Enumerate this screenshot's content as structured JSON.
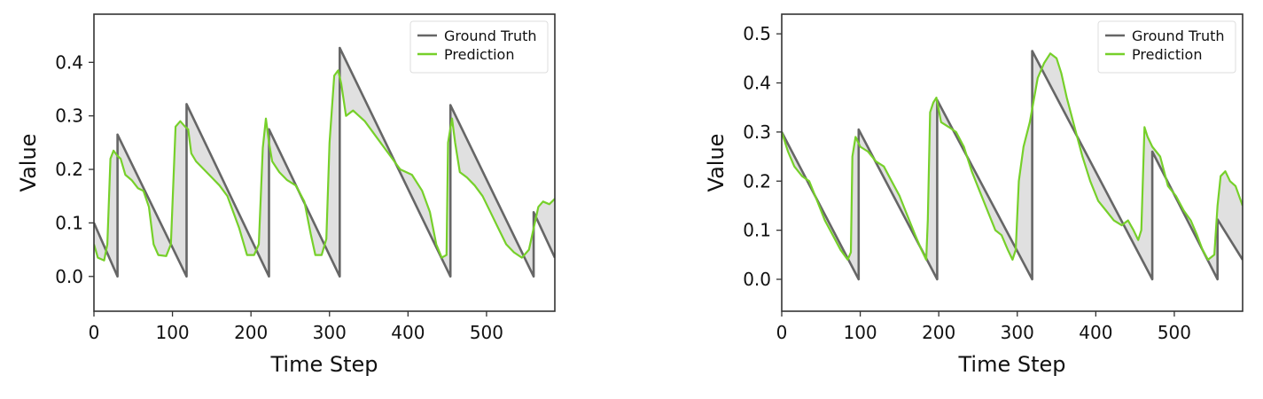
{
  "colors": {
    "ground_truth": "#666666",
    "prediction": "#76d02a",
    "fill": "#e0e0e0",
    "axes": "#333333"
  },
  "chart_data": [
    {
      "type": "line",
      "xlabel": "Time Step",
      "ylabel": "Value",
      "xlim": [
        0,
        587
      ],
      "ylim": [
        -0.065,
        0.49
      ],
      "xticks": [
        0,
        100,
        200,
        300,
        400,
        500
      ],
      "yticks": [
        0.0,
        0.1,
        0.2,
        0.3,
        0.4
      ],
      "ytick_labels": [
        "0.0",
        "0.1",
        "0.2",
        "0.3",
        "0.4"
      ],
      "grid": false,
      "legend_position": "top-right",
      "fill_between": true,
      "series": [
        {
          "name": "Ground Truth",
          "color": "#666666",
          "points": [
            [
              0,
              0.1
            ],
            [
              30,
              0.0
            ],
            [
              30,
              0.265
            ],
            [
              118,
              0.0
            ],
            [
              118,
              0.322
            ],
            [
              223,
              0.0
            ],
            [
              223,
              0.275
            ],
            [
              313,
              0.0
            ],
            [
              313,
              0.427
            ],
            [
              454,
              0.0
            ],
            [
              454,
              0.32
            ],
            [
              560,
              0.0
            ],
            [
              560,
              0.12
            ],
            [
              587,
              0.035
            ]
          ]
        },
        {
          "name": "Prediction",
          "color": "#76d02a",
          "points": [
            [
              0,
              0.06
            ],
            [
              5,
              0.035
            ],
            [
              13,
              0.03
            ],
            [
              17,
              0.06
            ],
            [
              21,
              0.22
            ],
            [
              25,
              0.235
            ],
            [
              30,
              0.225
            ],
            [
              34,
              0.22
            ],
            [
              40,
              0.19
            ],
            [
              48,
              0.18
            ],
            [
              56,
              0.165
            ],
            [
              63,
              0.16
            ],
            [
              70,
              0.13
            ],
            [
              76,
              0.06
            ],
            [
              82,
              0.04
            ],
            [
              92,
              0.038
            ],
            [
              98,
              0.06
            ],
            [
              104,
              0.28
            ],
            [
              110,
              0.29
            ],
            [
              116,
              0.28
            ],
            [
              120,
              0.275
            ],
            [
              124,
              0.23
            ],
            [
              130,
              0.215
            ],
            [
              140,
              0.2
            ],
            [
              150,
              0.185
            ],
            [
              160,
              0.17
            ],
            [
              170,
              0.15
            ],
            [
              185,
              0.09
            ],
            [
              195,
              0.04
            ],
            [
              204,
              0.04
            ],
            [
              210,
              0.06
            ],
            [
              215,
              0.24
            ],
            [
              219,
              0.295
            ],
            [
              223,
              0.25
            ],
            [
              227,
              0.215
            ],
            [
              236,
              0.195
            ],
            [
              246,
              0.18
            ],
            [
              257,
              0.17
            ],
            [
              268,
              0.14
            ],
            [
              276,
              0.08
            ],
            [
              282,
              0.04
            ],
            [
              290,
              0.04
            ],
            [
              296,
              0.07
            ],
            [
              300,
              0.25
            ],
            [
              306,
              0.375
            ],
            [
              311,
              0.385
            ],
            [
              315,
              0.36
            ],
            [
              321,
              0.3
            ],
            [
              330,
              0.31
            ],
            [
              345,
              0.29
            ],
            [
              360,
              0.26
            ],
            [
              375,
              0.23
            ],
            [
              390,
              0.2
            ],
            [
              405,
              0.19
            ],
            [
              418,
              0.16
            ],
            [
              428,
              0.12
            ],
            [
              436,
              0.06
            ],
            [
              443,
              0.035
            ],
            [
              449,
              0.04
            ],
            [
              451,
              0.25
            ],
            [
              456,
              0.295
            ],
            [
              460,
              0.25
            ],
            [
              466,
              0.195
            ],
            [
              475,
              0.185
            ],
            [
              485,
              0.17
            ],
            [
              495,
              0.15
            ],
            [
              505,
              0.12
            ],
            [
              515,
              0.09
            ],
            [
              525,
              0.06
            ],
            [
              535,
              0.045
            ],
            [
              545,
              0.035
            ],
            [
              554,
              0.05
            ],
            [
              560,
              0.09
            ],
            [
              566,
              0.13
            ],
            [
              572,
              0.14
            ],
            [
              580,
              0.135
            ],
            [
              587,
              0.145
            ]
          ]
        }
      ]
    },
    {
      "type": "line",
      "xlabel": "Time Step",
      "ylabel": "Value",
      "xlim": [
        0,
        587
      ],
      "ylim": [
        -0.065,
        0.54
      ],
      "xticks": [
        0,
        100,
        200,
        300,
        400,
        500
      ],
      "yticks": [
        0.0,
        0.1,
        0.2,
        0.3,
        0.4,
        0.5
      ],
      "ytick_labels": [
        "0.0",
        "0.1",
        "0.2",
        "0.3",
        "0.4",
        "0.5"
      ],
      "grid": false,
      "legend_position": "top-right",
      "fill_between": true,
      "series": [
        {
          "name": "Ground Truth",
          "color": "#666666",
          "points": [
            [
              0,
              0.3
            ],
            [
              98,
              0.0
            ],
            [
              98,
              0.305
            ],
            [
              198,
              0.0
            ],
            [
              198,
              0.365
            ],
            [
              319,
              0.0
            ],
            [
              319,
              0.465
            ],
            [
              472,
              0.0
            ],
            [
              472,
              0.26
            ],
            [
              555,
              0.0
            ],
            [
              555,
              0.122
            ],
            [
              587,
              0.04
            ]
          ]
        },
        {
          "name": "Prediction",
          "color": "#76d02a",
          "points": [
            [
              0,
              0.3
            ],
            [
              8,
              0.26
            ],
            [
              16,
              0.23
            ],
            [
              26,
              0.21
            ],
            [
              35,
              0.2
            ],
            [
              45,
              0.16
            ],
            [
              55,
              0.12
            ],
            [
              65,
              0.09
            ],
            [
              75,
              0.06
            ],
            [
              84,
              0.04
            ],
            [
              88,
              0.055
            ],
            [
              90,
              0.25
            ],
            [
              94,
              0.29
            ],
            [
              100,
              0.27
            ],
            [
              110,
              0.26
            ],
            [
              120,
              0.24
            ],
            [
              130,
              0.23
            ],
            [
              140,
              0.2
            ],
            [
              150,
              0.17
            ],
            [
              160,
              0.13
            ],
            [
              170,
              0.09
            ],
            [
              178,
              0.06
            ],
            [
              184,
              0.04
            ],
            [
              186,
              0.12
            ],
            [
              189,
              0.34
            ],
            [
              193,
              0.36
            ],
            [
              197,
              0.37
            ],
            [
              203,
              0.32
            ],
            [
              213,
              0.31
            ],
            [
              222,
              0.3
            ],
            [
              232,
              0.27
            ],
            [
              242,
              0.22
            ],
            [
              252,
              0.18
            ],
            [
              262,
              0.14
            ],
            [
              272,
              0.1
            ],
            [
              280,
              0.09
            ],
            [
              288,
              0.06
            ],
            [
              294,
              0.04
            ],
            [
              298,
              0.06
            ],
            [
              302,
              0.2
            ],
            [
              308,
              0.27
            ],
            [
              316,
              0.32
            ],
            [
              326,
              0.41
            ],
            [
              334,
              0.44
            ],
            [
              342,
              0.46
            ],
            [
              350,
              0.45
            ],
            [
              356,
              0.42
            ],
            [
              363,
              0.37
            ],
            [
              373,
              0.31
            ],
            [
              383,
              0.25
            ],
            [
              393,
              0.2
            ],
            [
              403,
              0.16
            ],
            [
              413,
              0.14
            ],
            [
              423,
              0.12
            ],
            [
              433,
              0.11
            ],
            [
              441,
              0.12
            ],
            [
              448,
              0.1
            ],
            [
              454,
              0.08
            ],
            [
              458,
              0.1
            ],
            [
              462,
              0.31
            ],
            [
              466,
              0.29
            ],
            [
              472,
              0.27
            ],
            [
              482,
              0.25
            ],
            [
              492,
              0.19
            ],
            [
              502,
              0.17
            ],
            [
              512,
              0.14
            ],
            [
              521,
              0.12
            ],
            [
              529,
              0.09
            ],
            [
              536,
              0.06
            ],
            [
              543,
              0.04
            ],
            [
              551,
              0.05
            ],
            [
              555,
              0.15
            ],
            [
              559,
              0.21
            ],
            [
              565,
              0.22
            ],
            [
              571,
              0.2
            ],
            [
              578,
              0.19
            ],
            [
              587,
              0.15
            ]
          ]
        }
      ]
    }
  ]
}
